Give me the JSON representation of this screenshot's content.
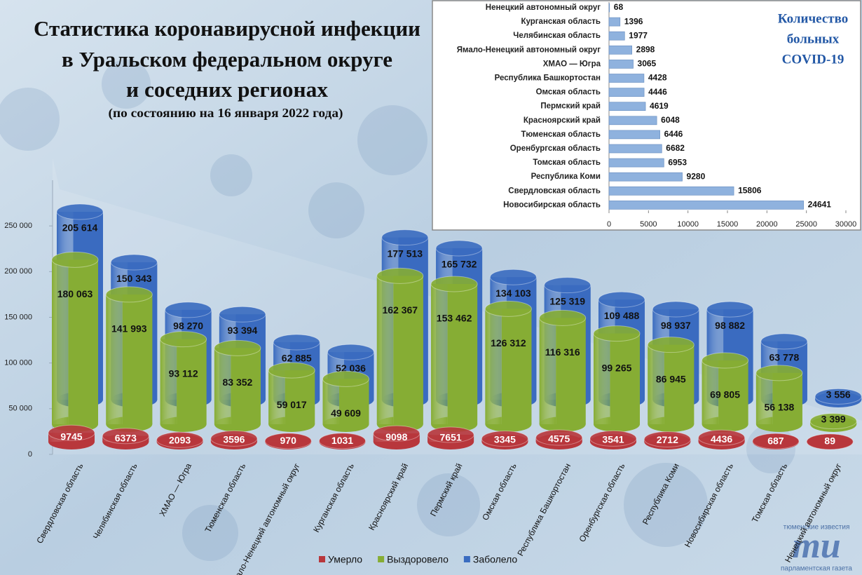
{
  "header": {
    "title_lines": [
      "Статистика коронавирусной инфекции",
      "в Уральском федеральном округе",
      "и соседних регионах"
    ],
    "subtitle": "(по состоянию на 16 января 2022 года)"
  },
  "logo": {
    "top": "тюменские известия",
    "mark": "mu",
    "bottom": "парламентская газета"
  },
  "chart_data": [
    {
      "type": "bar",
      "orientation": "vertical",
      "categories": [
        "Свердловская область",
        "Челябинская область",
        "ХМАО — Югра",
        "Тюменская область",
        "Ямало-Ненецкий автономный округ",
        "Курганская область",
        "Красноярский край",
        "Пермский край",
        "Омская область",
        "Республика Башкортостан",
        "Оренбургская область",
        "Республика Коми",
        "Новосибирская область",
        "Томская область",
        "Ненецкий автономный округ"
      ],
      "series": [
        {
          "name": "Умерло",
          "color": "#b8373c",
          "values": [
            9745,
            6373,
            2093,
            3596,
            970,
            1031,
            9098,
            7651,
            3345,
            4575,
            3541,
            2712,
            4436,
            687,
            89
          ]
        },
        {
          "name": "Выздоровело",
          "color": "#86ad34",
          "values": [
            180063,
            141993,
            93112,
            83352,
            59017,
            49609,
            162367,
            153462,
            126312,
            116316,
            99265,
            86945,
            69805,
            56138,
            3399
          ],
          "value_labels": [
            "180 063",
            "141 993",
            "93 112",
            "83 352",
            "59 017",
            "49 609",
            "162 367",
            "153 462",
            "126 312",
            "116 316",
            "99 265",
            "86 945",
            "69 805",
            "56 138",
            "3 399"
          ]
        },
        {
          "name": "Заболело",
          "color": "#3a6cc0",
          "values": [
            205614,
            150343,
            98270,
            93394,
            62885,
            52036,
            177513,
            165732,
            134103,
            125319,
            109488,
            98937,
            98882,
            63778,
            3556
          ],
          "value_labels": [
            "205 614",
            "150 343",
            "98 270",
            "93 394",
            "62 885",
            "52 036",
            "177 513",
            "165 732",
            "134 103",
            "125 319",
            "109 488",
            "98 937",
            "98 882",
            "63 778",
            "3 556"
          ]
        }
      ],
      "ylim": [
        0,
        300000
      ],
      "yticks": [
        0,
        {
          "value": 50000,
          "label": "50 000"
        },
        {
          "value": 100000,
          "label": "100 000"
        },
        {
          "value": 150000,
          "label": "150 000"
        },
        {
          "value": 200000,
          "label": "200 000"
        },
        {
          "value": 250000,
          "label": "250 000"
        }
      ],
      "legend": "bottom"
    },
    {
      "type": "bar",
      "orientation": "horizontal",
      "title_lines": [
        "Количество",
        "больных",
        "COVID-19"
      ],
      "categories": [
        "Ненецкий автономный округ",
        "Курганская область",
        "Челябинская область",
        "Ямало-Ненецкий автономный округ",
        "ХМАО — Югра",
        "Республика Башкортостан",
        "Омская область",
        "Пермский край",
        "Красноярский край",
        "Тюменская область",
        "Оренбургская область",
        "Томская область",
        "Республика Коми",
        "Свердловская область",
        "Новосибирская область"
      ],
      "values": [
        68,
        1396,
        1977,
        2898,
        3065,
        4428,
        4446,
        4619,
        6048,
        6446,
        6682,
        6953,
        9280,
        15806,
        24641
      ],
      "color": "#8fb2de",
      "xlim": [
        0,
        30000
      ],
      "xticks": [
        0,
        5000,
        10000,
        15000,
        20000,
        25000,
        30000
      ]
    }
  ]
}
